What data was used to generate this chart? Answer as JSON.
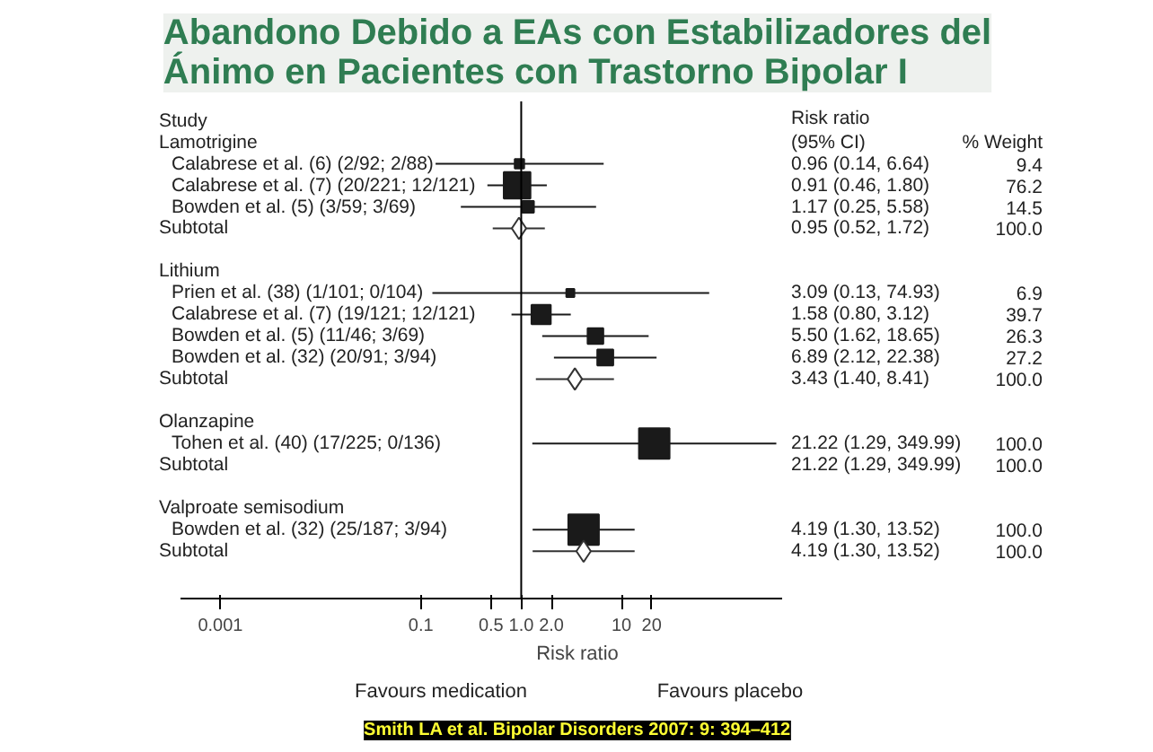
{
  "chart_data": {
    "type": "scatter",
    "orientation": "horizontal",
    "title": "Abandono Debido a EAs con Estabilizadores del\nÁnimo en Pacientes con Trastorno Bipolar I",
    "xlabel": "Risk ratio",
    "log": "x",
    "xlim": [
      0.0004,
      400
    ],
    "xticks": [
      0.001,
      0.1,
      0.5,
      {
        "value": 1,
        "label": "1.0"
      },
      {
        "value": 2,
        "label": "2.0"
      },
      10,
      20
    ],
    "categories": [
      "Lamotrigine",
      "Calabrese et al. (6) (2/92; 2/88)",
      "Calabrese et al. (7) (20/221; 12/121)",
      "Bowden et al. (5) (3/59; 3/69)",
      "Subtotal",
      null,
      "Lithium",
      "Prien et al. (38) (1/101; 0/104)",
      "Calabrese et al. (7) (19/121; 12/121)",
      "Bowden et al. (5) (11/46; 3/69)",
      "Bowden et al. (32) (20/91; 3/94)",
      "Subtotal",
      null,
      "Olanzapine",
      "Tohen et al. (40) (17/225; 0/136)",
      "Subtotal",
      null,
      "Valproate semisodium",
      "Bowden et al. (32) (25/187; 3/94)",
      "Subtotal"
    ],
    "series": [
      {
        "type": "scatter",
        "marker": "square",
        "color": "#1a1a1a",
        "values": [
          null,
          0.96,
          0.91,
          1.17,
          null,
          null,
          null,
          3.09,
          1.58,
          5.5,
          6.89,
          null,
          null,
          null,
          21.22,
          null,
          null,
          null,
          4.19,
          null
        ],
        "errors": [
          null,
          [
            0.14,
            6.64
          ],
          [
            0.46,
            1.8
          ],
          [
            0.25,
            5.58
          ],
          null,
          null,
          null,
          [
            0.13,
            74.93
          ],
          [
            0.8,
            3.12
          ],
          [
            1.62,
            18.65
          ],
          [
            2.12,
            22.38
          ],
          null,
          null,
          null,
          [
            1.29,
            349.99
          ],
          null,
          null,
          null,
          [
            1.3,
            13.52
          ],
          null
        ],
        "sizes": [
          null,
          0.094,
          0.762,
          0.145,
          null,
          null,
          null,
          0.069,
          0.397,
          0.263,
          0.272,
          null,
          null,
          null,
          1,
          null,
          null,
          null,
          1,
          null
        ]
      },
      {
        "type": "scatter",
        "marker": "diamond",
        "color": "#333333",
        "values": [
          null,
          null,
          null,
          null,
          0.95,
          null,
          null,
          null,
          null,
          null,
          null,
          3.43,
          null,
          null,
          null,
          null,
          null,
          null,
          null,
          4.19
        ],
        "errors": [
          null,
          null,
          null,
          null,
          [
            0.52,
            1.72
          ],
          null,
          null,
          null,
          null,
          null,
          null,
          [
            1.4,
            8.41
          ],
          null,
          null,
          null,
          null,
          null,
          null,
          null,
          [
            1.3,
            13.52
          ]
        ]
      }
    ],
    "ref_lines": [
      {
        "axis": "x",
        "value": 1
      }
    ],
    "annotations": [
      "Study",
      "Risk ratio",
      "(95% CI)",
      "% Weight",
      "Favours medication",
      "Favours placebo",
      "Smith LA et al. Bipolar Disorders 2007: 9: 394–412",
      "0.96 (0.14, 6.64)",
      "0.91 (0.46, 1.80)",
      "1.17 (0.25, 5.58)",
      "0.95 (0.52, 1.72)",
      "3.09 (0.13, 74.93)",
      "1.58 (0.80, 3.12)",
      "5.50 (1.62, 18.65)",
      "6.89 (2.12, 22.38)",
      "3.43 (1.40, 8.41)",
      "21.22 (1.29, 349.99)",
      "21.22 (1.29, 349.99)",
      "4.19 (1.30, 13.52)",
      "4.19 (1.30, 13.52)",
      "9.4",
      "76.2",
      "14.5",
      "100.0",
      "6.9",
      "39.7",
      "26.3",
      "27.2",
      "100.0",
      "100.0",
      "100.0",
      "100.0",
      "100.0"
    ]
  }
}
